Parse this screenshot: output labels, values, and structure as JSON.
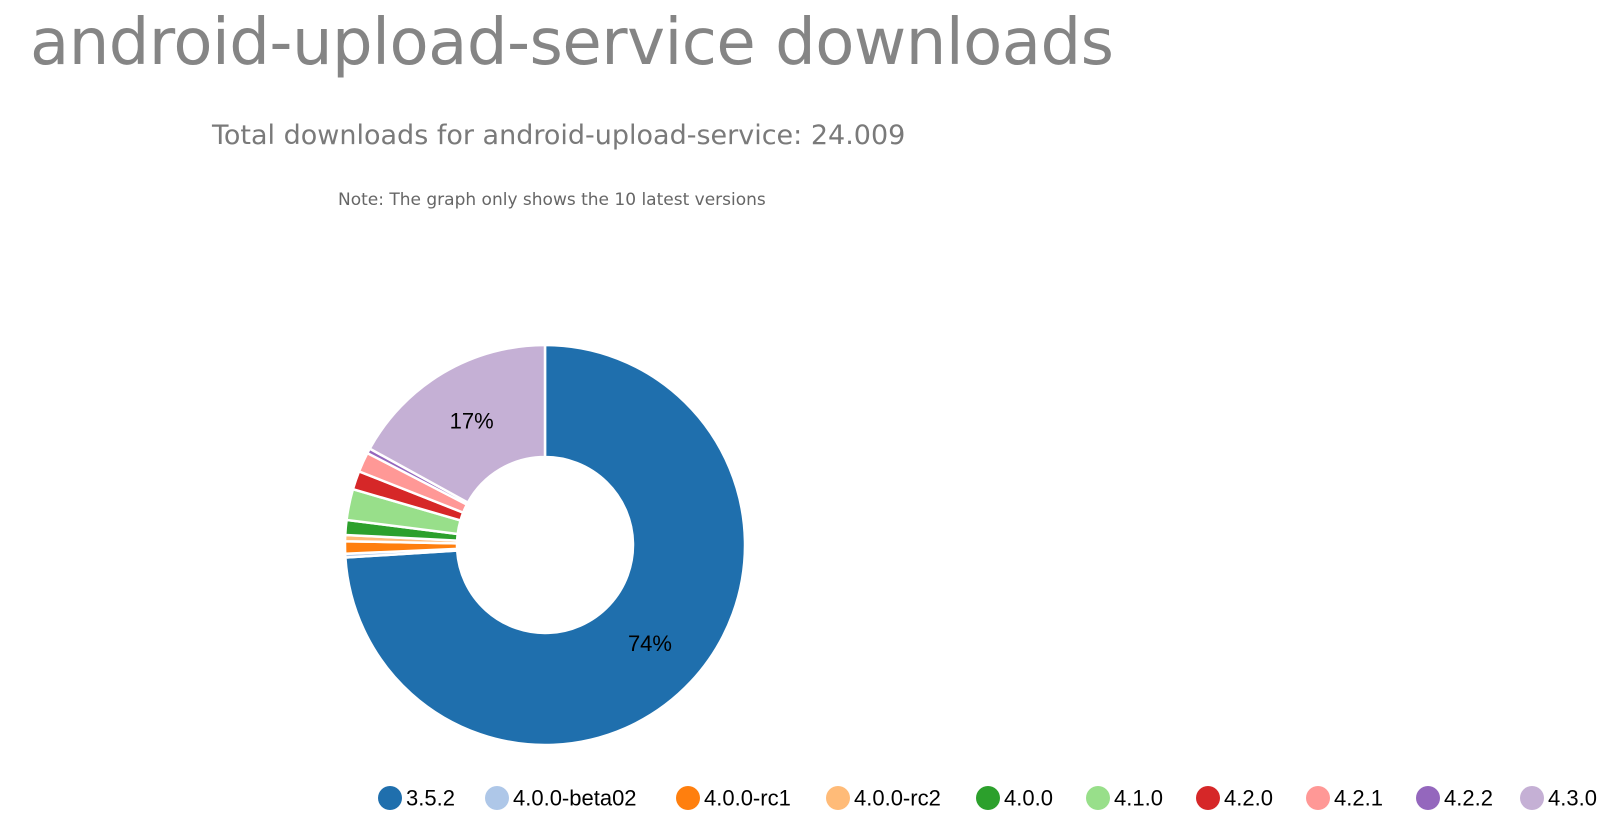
{
  "page": {
    "title": "android-upload-service downloads",
    "total_text": "Total downloads for android-upload-service: 24.009",
    "note": "Note: The graph only shows the 10 latest versions"
  },
  "chart_data": {
    "type": "pie",
    "variant": "donut",
    "title": "",
    "total": 24009,
    "categories": [
      "3.5.2",
      "4.0.0-beta02",
      "4.0.0-rc1",
      "4.0.0-rc2",
      "4.0.0",
      "4.1.0",
      "4.2.0",
      "4.2.1",
      "4.2.2",
      "4.3.0"
    ],
    "values": [
      74.0,
      0.3,
      1.0,
      0.5,
      1.2,
      2.5,
      1.5,
      1.6,
      0.4,
      17.0
    ],
    "colors": [
      "#1f6fad",
      "#aec7e8",
      "#ff7f0e",
      "#ffbb78",
      "#2ca02c",
      "#98df8a",
      "#d62728",
      "#ff9896",
      "#9467bd",
      "#c5b0d5"
    ],
    "slice_labels": [
      {
        "index": 0,
        "text": "74%"
      },
      {
        "index": 9,
        "text": "17%"
      }
    ],
    "start_angle_deg": 0,
    "legend_position": "bottom"
  }
}
